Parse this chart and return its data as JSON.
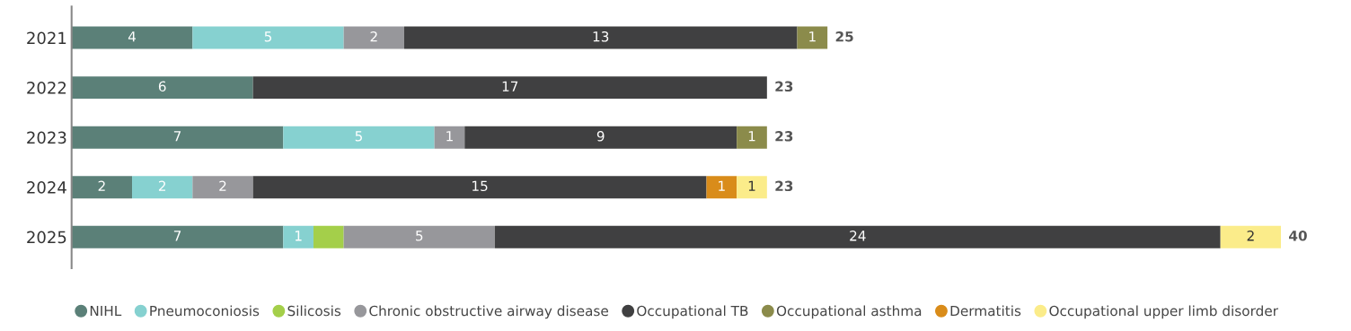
{
  "chart_data": {
    "type": "bar",
    "orientation": "horizontal",
    "stacked": true,
    "categories": [
      "2021",
      "2022",
      "2023",
      "2024",
      "2025"
    ],
    "series": [
      {
        "name": "NIHL",
        "color": "#5b8078",
        "values": [
          4,
          6,
          7,
          2,
          7
        ],
        "value_labels": [
          "4",
          "6",
          "7",
          "2",
          "7"
        ]
      },
      {
        "name": "Pneumoconiosis",
        "color": "#86d1d0",
        "values": [
          5,
          null,
          5,
          2,
          1
        ],
        "value_labels": [
          "5",
          null,
          "5",
          "2",
          "1"
        ]
      },
      {
        "name": "Silicosis",
        "color": "#a4cf4a",
        "values": [
          null,
          null,
          null,
          null,
          1
        ],
        "value_labels": [
          null,
          null,
          null,
          null,
          null
        ]
      },
      {
        "name": "Chronic obstructive airway disease",
        "color": "#97979b",
        "values": [
          2,
          null,
          1,
          2,
          5
        ],
        "value_labels": [
          "2",
          null,
          "1",
          "2",
          "5"
        ]
      },
      {
        "name": "Occupational TB",
        "color": "#404041",
        "values": [
          13,
          17,
          9,
          15,
          24
        ],
        "value_labels": [
          "13",
          "17",
          "9",
          "15",
          "24"
        ]
      },
      {
        "name": "Occupational asthma",
        "color": "#8b8b4b",
        "values": [
          1,
          null,
          1,
          null,
          null
        ],
        "value_labels": [
          "1",
          null,
          "1",
          null,
          null
        ]
      },
      {
        "name": "Dermatitis",
        "color": "#d98c1a",
        "values": [
          null,
          null,
          null,
          1,
          null
        ],
        "value_labels": [
          null,
          null,
          null,
          "1",
          null
        ]
      },
      {
        "name": "Occupational upper limb disorder",
        "color": "#fbec8a",
        "values": [
          null,
          null,
          null,
          1,
          2
        ],
        "value_labels": [
          null,
          null,
          null,
          "1",
          "2"
        ]
      }
    ],
    "totals": [
      "25",
      "23",
      "23",
      "23",
      "40"
    ],
    "legend": "bottom",
    "marker": "circle",
    "grid": false,
    "tick_labels": "y"
  }
}
